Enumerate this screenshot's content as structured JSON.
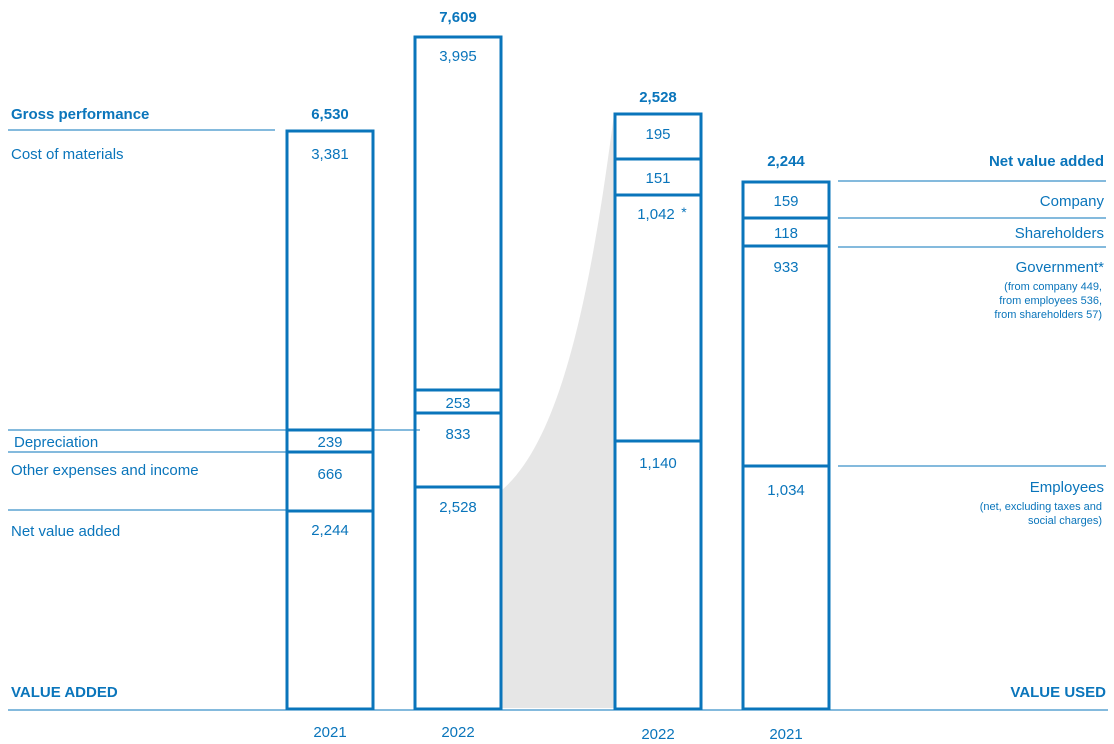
{
  "colors": {
    "accent": "#0a75bb",
    "fill": "#e6e6e6",
    "background": "#ffffff"
  },
  "chart_data": {
    "type": "bar",
    "subtype": "stacked-columns",
    "categories": [
      "2021",
      "2022",
      "2022",
      "2021"
    ],
    "value_added": {
      "heading": "VALUE ADDED",
      "row_labels": {
        "gross": "Gross performance",
        "materials": "Cost of materials",
        "depreciation": "Depreciation",
        "other": "Other expenses and income",
        "net": "Net value added"
      },
      "columns": [
        {
          "year": "2021",
          "total": "6,530",
          "materials": "3,381",
          "depreciation": "239",
          "other": "666",
          "net": "2,244"
        },
        {
          "year": "2022",
          "total": "7,609",
          "materials": "3,995",
          "depreciation": "253",
          "other": "833",
          "net": "2,528"
        }
      ]
    },
    "value_used": {
      "heading": "VALUE USED",
      "title": "Net value added",
      "labels": {
        "company": "Company",
        "shareholders": "Shareholders",
        "government": "Government*",
        "government_notes": [
          "(from company 449,",
          "from employees 536,",
          "from shareholders 57)"
        ],
        "employees": "Employees",
        "employees_notes": [
          "(net, excluding taxes and",
          "social charges)"
        ]
      },
      "columns": [
        {
          "year": "2022",
          "total": "2,528",
          "company": "195",
          "shareholders": "151",
          "government": "1,042",
          "government_mark": "*",
          "employees": "1,140"
        },
        {
          "year": "2021",
          "total": "2,244",
          "company": "159",
          "shareholders": "118",
          "government": "933",
          "employees": "1,034"
        }
      ]
    }
  }
}
